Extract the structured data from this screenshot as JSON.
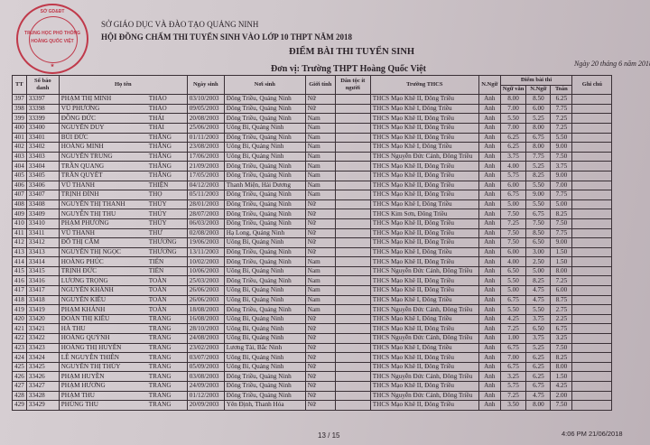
{
  "header": {
    "line1": "SỞ GIÁO DỤC VÀ ĐÀO TẠO QUẢNG NINH",
    "line2": "HỘI ĐỒNG CHẤM THI TUYỂN SINH VÀO LỚP 10 THPT NĂM 2018",
    "title": "ĐIỂM BÀI THI TUYỂN SINH",
    "unit": "Đơn vị:  Trường THPT Hoàng Quốc Việt",
    "date": "Ngày 20 tháng 6 năm 2018"
  },
  "stamp": {
    "top": "SỞ GD&ĐT",
    "mid1": "TRUNG HỌC PHỔ THÔNG",
    "mid2": "HOÀNG QUỐC VIỆT",
    "color": "#c0394a"
  },
  "columns": {
    "tt": "TT",
    "sbd": "Số báo danh",
    "name": "Họ tên",
    "dob": "Ngày sinh",
    "pob": "Nơi sinh",
    "sex": "Giới tính",
    "ethnic": "Dân tộc ít người",
    "school": "Trường THCS",
    "lang": "N.Ngữ",
    "scores": "Điểm bài thi",
    "lit": "Ngữ văn",
    "foreign": "N.Ngữ",
    "math": "Toán",
    "note": "Ghi chú"
  },
  "rows": [
    [
      "397",
      "33397",
      "PHẠM THỊ MINH",
      "THẢO",
      "03/10/2003",
      "Đông Triều, Quảng Ninh",
      "Nữ",
      "THCS Mạo Khê II, Đông Triều",
      "Anh",
      "8.00",
      "8.50",
      "6.25"
    ],
    [
      "398",
      "33398",
      "VŨ PHƯƠNG",
      "THẢO",
      "09/05/2003",
      "Đông Triều, Quảng Ninh",
      "Nữ",
      "THCS Mạo Khê I, Đông Triều",
      "Anh",
      "7.00",
      "6.00",
      "7.75"
    ],
    [
      "399",
      "33399",
      "ĐỒNG ĐỨC",
      "THÁI",
      "20/08/2003",
      "Đông Triều, Quảng Ninh",
      "Nam",
      "THCS Mạo Khê II, Đông Triều",
      "Anh",
      "5.50",
      "5.25",
      "7.25"
    ],
    [
      "400",
      "33400",
      "NGUYỄN DUY",
      "THÁI",
      "25/06/2003",
      "Uông Bí, Quảng Ninh",
      "Nam",
      "THCS Mạo Khê II, Đông Triều",
      "Anh",
      "7.00",
      "8.00",
      "7.25"
    ],
    [
      "401",
      "33401",
      "BÙI ĐỨC",
      "THẮNG",
      "01/11/2003",
      "Đông Triều, Quảng Ninh",
      "Nam",
      "THCS Mạo Khê II, Đông Triều",
      "Anh",
      "6.25",
      "6.75",
      "5.50"
    ],
    [
      "402",
      "33402",
      "HOÀNG MINH",
      "THẮNG",
      "23/08/2003",
      "Uông Bí, Quảng Ninh",
      "Nam",
      "THCS Mạo Khê I, Đông Triều",
      "Anh",
      "6.25",
      "8.00",
      "9.00"
    ],
    [
      "403",
      "33403",
      "NGUYỄN TRUNG",
      "THẮNG",
      "17/06/2003",
      "Uông Bí, Quảng Ninh",
      "Nam",
      "THCS Nguyễn Đức Cảnh, Đông Triều",
      "Anh",
      "3.75",
      "7.75",
      "7.50"
    ],
    [
      "404",
      "33404",
      "TRẦN QUANG",
      "THẮNG",
      "21/09/2003",
      "Đông Triều, Quảng Ninh",
      "Nam",
      "THCS Mạo Khê II, Đông Triều",
      "Anh",
      "4.00",
      "5.25",
      "3.75"
    ],
    [
      "405",
      "33405",
      "TRẦN QUYẾT",
      "THẮNG",
      "17/05/2003",
      "Đông Triều, Quảng Ninh",
      "Nam",
      "THCS Mạo Khê II, Đông Triều",
      "Anh",
      "5.75",
      "8.25",
      "9.00"
    ],
    [
      "406",
      "33406",
      "VŨ THANH",
      "THIỆN",
      "04/12/2003",
      "Thanh Miện, Hải Dương",
      "Nam",
      "THCS Mạo Khê II, Đông Triều",
      "Anh",
      "6.00",
      "5.50",
      "7.00"
    ],
    [
      "407",
      "33407",
      "TRỊNH ĐÌNH",
      "THỌ",
      "05/11/2003",
      "Đông Triều, Quảng Ninh",
      "Nam",
      "THCS Mạo Khê II, Đông Triều",
      "Anh",
      "6.75",
      "9.00",
      "7.75"
    ],
    [
      "408",
      "33408",
      "NGUYỄN THỊ THANH",
      "THỦY",
      "28/01/2003",
      "Đông Triều, Quảng Ninh",
      "Nữ",
      "THCS Mạo Khê I, Đông Triều",
      "Anh",
      "5.00",
      "5.50",
      "5.00"
    ],
    [
      "409",
      "33409",
      "NGUYỄN THỊ THU",
      "THỦY",
      "28/07/2003",
      "Đông Triều, Quảng Ninh",
      "Nữ",
      "THCS Kim Sơn, Đông Triều",
      "Anh",
      "7.50",
      "6.75",
      "8.25"
    ],
    [
      "410",
      "33410",
      "PHẠM PHƯƠNG",
      "THÚY",
      "06/03/2003",
      "Đông Triều, Quảng Ninh",
      "Nữ",
      "THCS Mạo Khê II, Đông Triều",
      "Anh",
      "7.25",
      "7.50",
      "7.50"
    ],
    [
      "411",
      "33411",
      "VŨ THANH",
      "THƯ",
      "02/08/2003",
      "Hạ Long, Quảng Ninh",
      "Nữ",
      "THCS Mạo Khê II, Đông Triều",
      "Anh",
      "7.50",
      "8.50",
      "7.75"
    ],
    [
      "412",
      "33412",
      "ĐỖ THỊ CẨM",
      "THƯƠNG",
      "19/06/2003",
      "Uông Bí, Quảng Ninh",
      "Nữ",
      "THCS Mạo Khê II, Đông Triều",
      "Anh",
      "7.50",
      "6.50",
      "9.00"
    ],
    [
      "413",
      "33413",
      "NGUYỄN THỊ NGỌC",
      "THƯƠNG",
      "13/11/2003",
      "Đông Triều, Quảng Ninh",
      "Nữ",
      "THCS Mạo Khê I, Đông Triều",
      "Anh",
      "6.00",
      "3.00",
      "1.50"
    ],
    [
      "414",
      "33414",
      "HOÀNG PHÚC",
      "TIẾN",
      "10/02/2003",
      "Đông Triều, Quảng Ninh",
      "Nam",
      "THCS Mạo Khê II, Đông Triều",
      "Anh",
      "4.00",
      "2.50",
      "1.50"
    ],
    [
      "415",
      "33415",
      "TRỊNH ĐỨC",
      "TIẾN",
      "10/06/2003",
      "Uông Bí, Quảng Ninh",
      "Nam",
      "THCS Nguyễn Đức Cảnh, Đông Triều",
      "Anh",
      "6.50",
      "5.00",
      "8.00"
    ],
    [
      "416",
      "33416",
      "LƯƠNG TRỌNG",
      "TOÀN",
      "25/03/2003",
      "Đông Triều, Quảng Ninh",
      "Nam",
      "THCS Mạo Khê II, Đông Triều",
      "Anh",
      "5.50",
      "8.25",
      "7.25"
    ],
    [
      "417",
      "33417",
      "NGUYỄN KHÁNH",
      "TOÀN",
      "26/06/2003",
      "Uông Bí, Quảng Ninh",
      "Nam",
      "THCS Mạo Khê II, Đông Triều",
      "Anh",
      "5.00",
      "4.75",
      "6.00"
    ],
    [
      "418",
      "33418",
      "NGUYỄN KIỀU",
      "TOÀN",
      "26/06/2003",
      "Uông Bí, Quảng Ninh",
      "Nam",
      "THCS Mạo Khê I, Đông Triều",
      "Anh",
      "6.75",
      "4.75",
      "8.75"
    ],
    [
      "419",
      "33419",
      "PHẠM KHÁNH",
      "TOÀN",
      "18/08/2003",
      "Đông Triều, Quảng Ninh",
      "Nam",
      "THCS Nguyễn Đức Cảnh, Đông Triều",
      "Anh",
      "5.50",
      "5.50",
      "2.75"
    ],
    [
      "420",
      "33420",
      "ĐOÀN THỊ KIỀU",
      "TRANG",
      "16/08/2003",
      "Uông Bí, Quảng Ninh",
      "Nữ",
      "THCS Mạo Khê I, Đông Triều",
      "Anh",
      "4.25",
      "3.75",
      "2.25"
    ],
    [
      "421",
      "33421",
      "HÀ THU",
      "TRANG",
      "28/10/2003",
      "Uông Bí, Quảng Ninh",
      "Nữ",
      "THCS Mạo Khê II, Đông Triều",
      "Anh",
      "7.25",
      "6.50",
      "6.75"
    ],
    [
      "422",
      "33422",
      "HOÀNG QUỲNH",
      "TRANG",
      "24/08/2003",
      "Uông Bí, Quảng Ninh",
      "Nữ",
      "THCS Nguyễn Đức Cảnh, Đông Triều",
      "Anh",
      "1.00",
      "3.75",
      "3.25"
    ],
    [
      "423",
      "33423",
      "HOÀNG THỊ HUYỀN",
      "TRANG",
      "23/02/2003",
      "Lương Tài, Bắc Ninh",
      "Nữ",
      "THCS Mạo Khê I, Đông Triều",
      "Anh",
      "6.75",
      "5.25",
      "7.50"
    ],
    [
      "424",
      "33424",
      "LÊ NGUYỄN THIÊN",
      "TRANG",
      "03/07/2003",
      "Uông Bí, Quảng Ninh",
      "Nữ",
      "THCS Mạo Khê II, Đông Triều",
      "Anh",
      "7.00",
      "6.25",
      "8.25"
    ],
    [
      "425",
      "33425",
      "NGUYỄN THỊ THÙY",
      "TRANG",
      "05/09/2003",
      "Uông Bí, Quảng Ninh",
      "Nữ",
      "THCS Mạo Khê II, Đông Triều",
      "Anh",
      "6.75",
      "6.25",
      "8.00"
    ],
    [
      "426",
      "33426",
      "PHẠM HUYỀN",
      "TRANG",
      "03/08/2003",
      "Đông Triều, Quảng Ninh",
      "Nữ",
      "THCS Nguyễn Đức Cảnh, Đông Triều",
      "Anh",
      "3.25",
      "6.25",
      "1.50"
    ],
    [
      "427",
      "33427",
      "PHẠM HƯƠNG",
      "TRANG",
      "24/09/2003",
      "Đông Triều, Quảng Ninh",
      "Nữ",
      "THCS Mạo Khê II, Đông Triều",
      "Anh",
      "5.75",
      "6.75",
      "4.25"
    ],
    [
      "428",
      "33428",
      "PHẠM THU",
      "TRANG",
      "01/12/2003",
      "Đông Triều, Quảng Ninh",
      "Nữ",
      "THCS Nguyễn Đức Cảnh, Đông Triều",
      "Anh",
      "7.25",
      "4.75",
      "2.00"
    ],
    [
      "429",
      "33429",
      "PHÙNG THU",
      "TRANG",
      "20/09/2003",
      "Yên Định, Thanh Hóa",
      "Nữ",
      "THCS Mạo Khê II, Đông Triều",
      "Anh",
      "3.50",
      "8.00",
      "7.50"
    ]
  ],
  "footer": {
    "page": "13 / 15",
    "timestamp": "4:06 PM 21/06/2018"
  }
}
